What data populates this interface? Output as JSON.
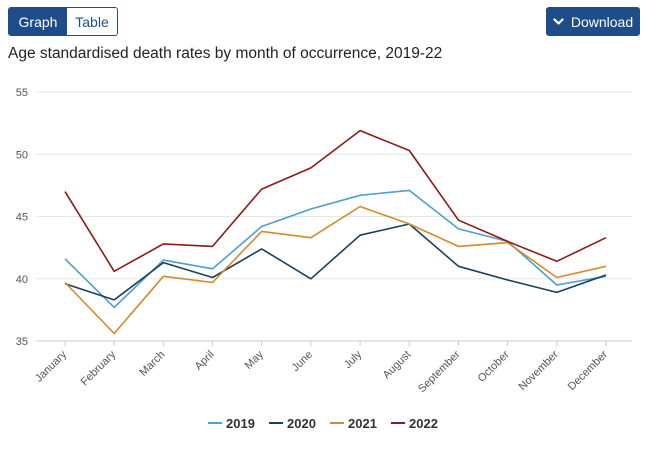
{
  "toolbar": {
    "graph_tab": "Graph",
    "table_tab": "Table",
    "download_label": "Download"
  },
  "colors": {
    "brand": "#1f4d8a",
    "grid": "#e6e6e6",
    "axis": "#cccccc"
  },
  "chart_data": {
    "type": "line",
    "title": "Age standardised death rates by month of occurrence, 2019-22",
    "xlabel": "",
    "ylabel": "",
    "ylim": [
      35,
      55
    ],
    "yticks": [
      35,
      40,
      45,
      50,
      55
    ],
    "grid": true,
    "legend_position": "bottom",
    "categories": [
      "January",
      "February",
      "March",
      "April",
      "May",
      "June",
      "July",
      "August",
      "September",
      "October",
      "November",
      "December"
    ],
    "series": [
      {
        "name": "2019",
        "color": "#4d9fcf",
        "values": [
          41.6,
          37.7,
          41.5,
          40.8,
          44.2,
          45.6,
          46.7,
          47.1,
          44.0,
          43.0,
          39.5,
          40.2
        ]
      },
      {
        "name": "2020",
        "color": "#1b3f5e",
        "values": [
          39.6,
          38.3,
          41.3,
          40.1,
          42.4,
          40.0,
          43.5,
          44.4,
          41.0,
          39.9,
          38.9,
          40.3
        ]
      },
      {
        "name": "2021",
        "color": "#d4892a",
        "values": [
          39.7,
          35.6,
          40.2,
          39.7,
          43.8,
          43.3,
          45.8,
          44.4,
          42.6,
          42.9,
          40.1,
          41.0
        ]
      },
      {
        "name": "2022",
        "color": "#8b1a1a",
        "values": [
          47.0,
          40.6,
          42.8,
          42.6,
          47.2,
          48.9,
          51.9,
          50.3,
          44.7,
          43.0,
          41.4,
          43.3
        ]
      }
    ]
  }
}
